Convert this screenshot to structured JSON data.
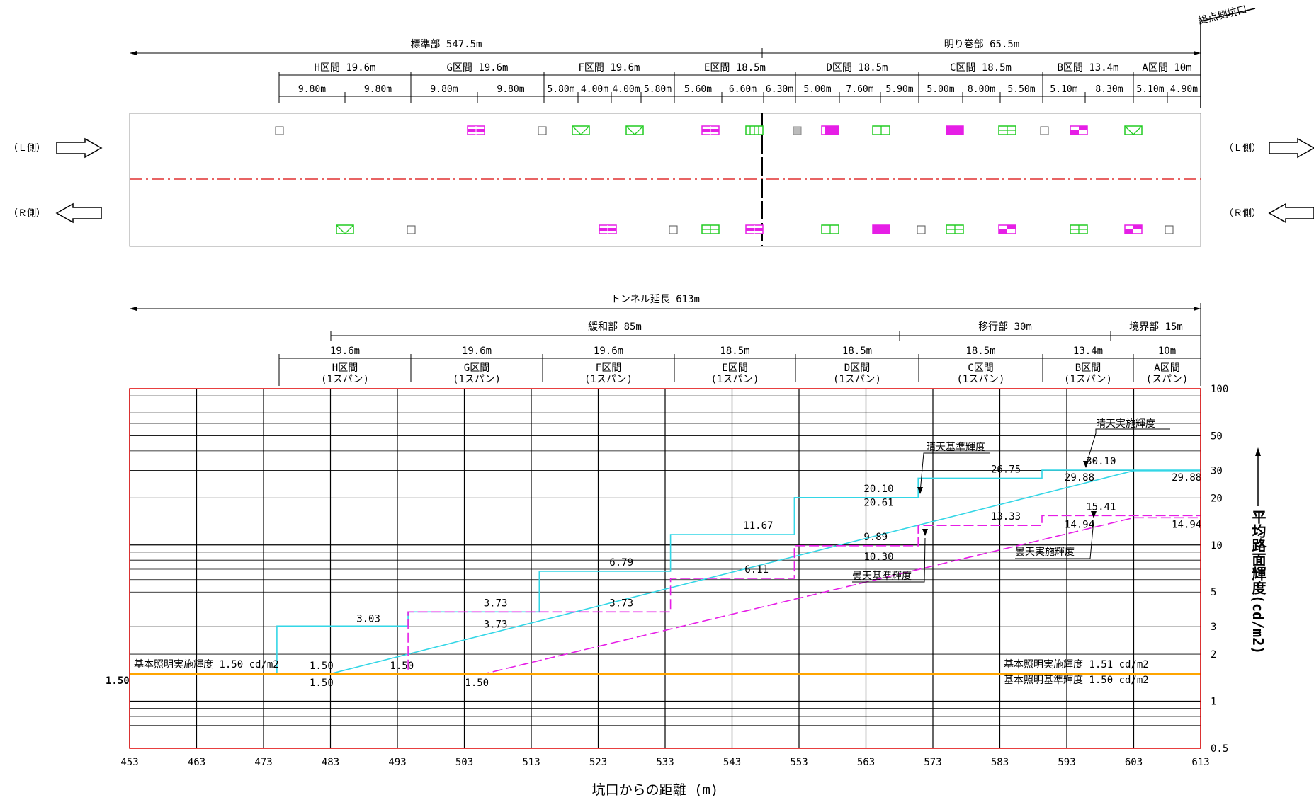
{
  "top": {
    "end_label": "終点側坑口",
    "sections": [
      {
        "label": "標準部 547.5m"
      },
      {
        "label": "明り巻部 65.5m"
      }
    ],
    "intervals": [
      {
        "label": "H区間 19.6m",
        "subs": [
          "9.80m",
          "9.80m"
        ]
      },
      {
        "label": "G区間 19.6m",
        "subs": [
          "9.80m",
          "9.80m"
        ]
      },
      {
        "label": "F区間 19.6m",
        "subs": [
          "5.80m",
          "4.00m",
          "4.00m",
          "5.80m"
        ]
      },
      {
        "label": "E区間 18.5m",
        "subs": [
          "5.60m",
          "6.60m",
          "6.30m"
        ]
      },
      {
        "label": "D区間 18.5m",
        "subs": [
          "5.00m",
          "7.60m",
          "5.90m"
        ]
      },
      {
        "label": "C区間 18.5m",
        "subs": [
          "5.00m",
          "8.00m",
          "5.50m"
        ]
      },
      {
        "label": "B区間 13.4m",
        "subs": [
          "5.10m",
          "8.30m"
        ]
      },
      {
        "label": "A区間 10m",
        "subs": [
          "5.10m",
          "4.90m"
        ]
      }
    ],
    "side_l": "（Ｌ側）",
    "side_r": "（Ｒ側）"
  },
  "lower": {
    "tunnel_label": "トンネル延長 613m",
    "zones": [
      {
        "label": "緩和部 85m"
      },
      {
        "label": "移行部 30m"
      },
      {
        "label": "境界部 15m"
      }
    ],
    "intervals": [
      {
        "len": "19.6m",
        "name": "H区間",
        "span": "(1スパン)"
      },
      {
        "len": "19.6m",
        "name": "G区間",
        "span": "(1スパン)"
      },
      {
        "len": "19.6m",
        "name": "F区間",
        "span": "(1スパン)"
      },
      {
        "len": "18.5m",
        "name": "E区間",
        "span": "(1スパン)"
      },
      {
        "len": "18.5m",
        "name": "D区間",
        "span": "(1スパン)"
      },
      {
        "len": "18.5m",
        "name": "C区間",
        "span": "(1スパン)"
      },
      {
        "len": "13.4m",
        "name": "B区間",
        "span": "(1スパン)"
      },
      {
        "len": "10m",
        "name": "A区間",
        "span": "(スパン)"
      }
    ]
  },
  "colors": {
    "cyan": "#33d6e6",
    "magenta": "#e61ee6",
    "orange": "#ffa500",
    "red": "#e00000",
    "green": "#22cc22"
  },
  "chart_data": {
    "type": "line",
    "xlabel": "坑口からの距離 (m)",
    "ylabel": "平均路面輝度(cd/m2)",
    "xlim": [
      453,
      613
    ],
    "ylim": [
      0.5,
      100
    ],
    "yscale": "log",
    "x_ticks": [
      453,
      463,
      473,
      483,
      493,
      503,
      513,
      523,
      533,
      543,
      553,
      563,
      573,
      583,
      593,
      603,
      613
    ],
    "y_ticks": [
      0.5,
      1,
      2,
      3,
      5,
      10,
      20,
      30,
      50,
      100
    ],
    "series": [
      {
        "name": "晴天実施輝度",
        "style": "solid-step",
        "color": "cyan",
        "x": [
          453,
          475,
          475,
          494.6,
          494.6,
          514.2,
          514.2,
          533.8,
          533.8,
          552.3,
          552.3,
          570.8,
          570.8,
          589.3,
          589.3,
          613
        ],
        "y": [
          1.5,
          1.5,
          3.03,
          3.03,
          3.73,
          3.73,
          6.79,
          6.79,
          11.67,
          11.67,
          20.1,
          20.1,
          26.75,
          26.75,
          30.1,
          30.1
        ]
      },
      {
        "name": "晴天基準輝度",
        "style": "solid-ramp",
        "color": "cyan",
        "x": [
          453,
          483,
          603,
          613
        ],
        "y": [
          1.5,
          1.5,
          29.88,
          29.88
        ]
      },
      {
        "name": "曇天実施輝度",
        "style": "dashed-step",
        "color": "magenta",
        "x": [
          453,
          494.6,
          494.6,
          533.8,
          533.8,
          552.3,
          552.3,
          570.8,
          570.8,
          589.3,
          589.3,
          613
        ],
        "y": [
          1.5,
          1.5,
          3.73,
          3.73,
          6.11,
          6.11,
          9.89,
          9.89,
          13.33,
          13.33,
          15.41,
          15.41
        ]
      },
      {
        "name": "曇天基準輝度",
        "style": "dashed-ramp",
        "color": "magenta",
        "x": [
          453,
          506,
          603,
          613
        ],
        "y": [
          1.5,
          1.5,
          14.94,
          14.94
        ]
      },
      {
        "name": "基本照明",
        "style": "solid",
        "color": "orange",
        "x": [
          453,
          613
        ],
        "y": [
          1.5,
          1.5
        ]
      }
    ],
    "value_labels": [
      {
        "text": "3.03",
        "x": 489,
        "y": 3.03
      },
      {
        "text": "1.50",
        "x": 482,
        "y": 1.5
      },
      {
        "text": "1.50",
        "x": 482,
        "y": 1.5
      },
      {
        "text": "1.50",
        "x": 494,
        "y": 1.5
      },
      {
        "text": "1.50",
        "x": 505,
        "y": 1.5
      },
      {
        "text": "3.73",
        "x": 508,
        "y": 3.73
      },
      {
        "text": "3.73",
        "x": 508,
        "y": 3.73
      },
      {
        "text": "3.73",
        "x": 527,
        "y": 3.73
      },
      {
        "text": "6.79",
        "x": 527,
        "y": 6.79
      },
      {
        "text": "6.11",
        "x": 547,
        "y": 6.11
      },
      {
        "text": "11.67",
        "x": 547,
        "y": 11.67
      },
      {
        "text": "9.89",
        "x": 565,
        "y": 9.89
      },
      {
        "text": "10.30",
        "x": 565,
        "y": 10.3
      },
      {
        "text": "20.10",
        "x": 565,
        "y": 20.1
      },
      {
        "text": "20.61",
        "x": 565,
        "y": 20.61
      },
      {
        "text": "26.75",
        "x": 584,
        "y": 26.75
      },
      {
        "text": "13.33",
        "x": 584,
        "y": 13.33
      },
      {
        "text": "30.10",
        "x": 598,
        "y": 30.1
      },
      {
        "text": "29.88",
        "x": 595,
        "y": 29.88
      },
      {
        "text": "15.41",
        "x": 598,
        "y": 15.41
      },
      {
        "text": "14.94",
        "x": 595,
        "y": 14.94
      },
      {
        "text": "29.88",
        "x": 611,
        "y": 29.88
      },
      {
        "text": "14.94",
        "x": 611,
        "y": 14.94
      }
    ],
    "annotations": [
      {
        "text": "晴天実施輝度"
      },
      {
        "text": "晴天基準輝度"
      },
      {
        "text": "曇天実施輝度"
      },
      {
        "text": "曇天基準輝度"
      },
      {
        "text": "基本照明実施輝度 1.50 cd/m2"
      },
      {
        "text": "基本照明実施輝度 1.51 cd/m2"
      },
      {
        "text": "基本照明基準輝度 1.50 cd/m2"
      },
      {
        "text": "1.50"
      }
    ]
  }
}
